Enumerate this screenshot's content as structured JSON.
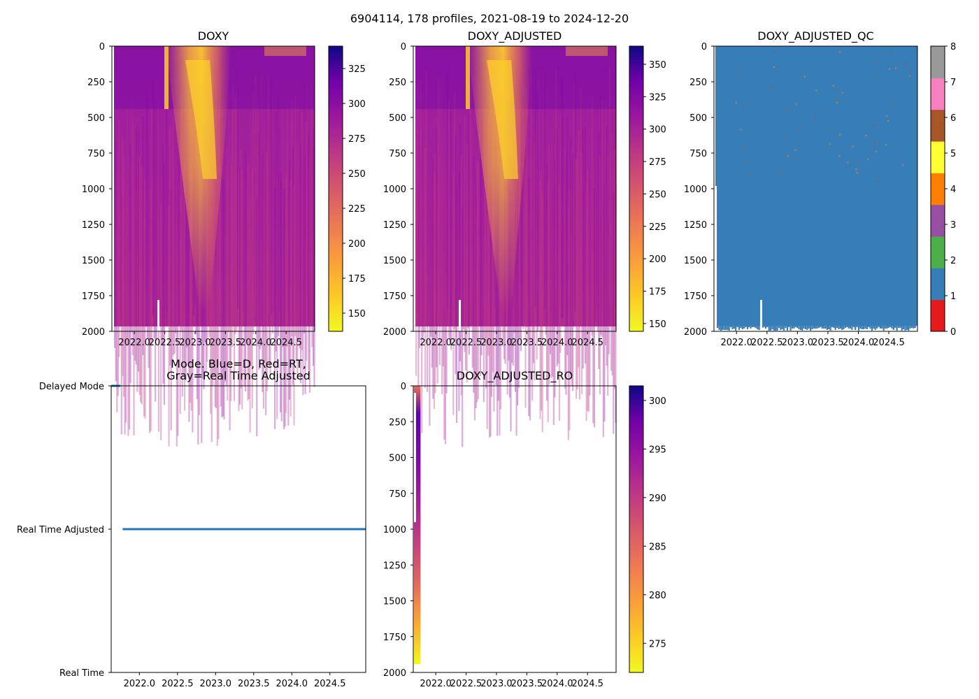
{
  "suptitle": "6904114, 178 profiles, 2021-08-19 to 2024-12-20",
  "chart_data": [
    {
      "id": "doxy",
      "type": "heatmap",
      "title": "DOXY",
      "colormap": "plasma_r",
      "x_ticks": [
        "2022.0",
        "2022.5",
        "2023.0",
        "2023.5",
        "2024.0",
        "2024.5"
      ],
      "x_tick_values": [
        2022.0,
        2022.5,
        2023.0,
        2023.5,
        2024.0,
        2024.5
      ],
      "xlim": [
        2021.63,
        2024.97
      ],
      "y_ticks": [
        "0",
        "250",
        "500",
        "750",
        "1000",
        "1250",
        "1500",
        "1750",
        "2000"
      ],
      "ylim": [
        2000,
        0
      ],
      "colorbar": {
        "min": 137,
        "max": 341,
        "ticks": [
          "150",
          "175",
          "200",
          "225",
          "250",
          "275",
          "300",
          "325"
        ],
        "tick_values": [
          150,
          175,
          200,
          225,
          250,
          275,
          300,
          325
        ]
      }
    },
    {
      "id": "doxy_adjusted",
      "type": "heatmap",
      "title": "DOXY_ADJUSTED",
      "colormap": "plasma_r",
      "x_ticks": [
        "2022.0",
        "2022.5",
        "2023.0",
        "2023.5",
        "2024.0",
        "2024.5"
      ],
      "x_tick_values": [
        2022.0,
        2022.5,
        2023.0,
        2023.5,
        2024.0,
        2024.5
      ],
      "xlim": [
        2021.63,
        2024.97
      ],
      "y_ticks": [
        "0",
        "250",
        "500",
        "750",
        "1000",
        "1250",
        "1500",
        "1750",
        "2000"
      ],
      "ylim": [
        2000,
        0
      ],
      "colorbar": {
        "min": 144,
        "max": 364,
        "ticks": [
          "150",
          "175",
          "200",
          "225",
          "250",
          "275",
          "300",
          "325",
          "350"
        ],
        "tick_values": [
          150,
          175,
          200,
          225,
          250,
          275,
          300,
          325,
          350
        ]
      }
    },
    {
      "id": "doxy_adjusted_qc",
      "type": "heatmap",
      "title": "DOXY_ADJUSTED_QC",
      "x_ticks": [
        "2022.0",
        "2022.5",
        "2023.0",
        "2023.5",
        "2024.0",
        "2024.5"
      ],
      "x_tick_values": [
        2022.0,
        2022.5,
        2023.0,
        2023.5,
        2024.0,
        2024.5
      ],
      "xlim": [
        2021.63,
        2024.97
      ],
      "y_ticks": [
        "0",
        "250",
        "500",
        "750",
        "1000",
        "1250",
        "1500",
        "1750",
        "2000"
      ],
      "ylim": [
        2000,
        0
      ],
      "dominant_flag": 1,
      "colorbar": {
        "min": 0,
        "max": 8,
        "ticks": [
          "0",
          "1",
          "2",
          "3",
          "4",
          "5",
          "6",
          "7",
          "8"
        ],
        "tick_values": [
          0,
          1,
          2,
          3,
          4,
          5,
          6,
          7,
          8
        ],
        "category_colors": [
          "#e41a1c",
          "#377eb8",
          "#4daf4a",
          "#984ea3",
          "#ff7f00",
          "#ffff33",
          "#a65628",
          "#f781bf",
          "#999999"
        ]
      }
    },
    {
      "id": "mode",
      "type": "line",
      "title_line1": "Mode. Blue=D, Red=RT,",
      "title_line2": "Gray=Real Time Adjusted",
      "x_ticks": [
        "2022.0",
        "2022.5",
        "2023.0",
        "2023.5",
        "2024.0",
        "2024.5"
      ],
      "x_tick_values": [
        2022.0,
        2022.5,
        2023.0,
        2023.5,
        2024.0,
        2024.5
      ],
      "xlim": [
        2021.63,
        2024.97
      ],
      "y_categories": [
        "Real Time",
        "Real Time Adjusted",
        "Delayed Mode"
      ],
      "series": [
        {
          "name": "Delayed Mode",
          "level": 2,
          "x": [
            2021.63,
            2021.75
          ],
          "color": "#1f77b4"
        },
        {
          "name": "Real Time Adjusted",
          "level": 1,
          "x": [
            2021.78,
            2024.97
          ],
          "color": "#1f77b4"
        }
      ]
    },
    {
      "id": "doxy_adjusted_ro",
      "type": "heatmap",
      "title": "DOXY_ADJUSTED_RO",
      "colormap": "plasma_r",
      "x_ticks": [
        "2022.0",
        "2022.5",
        "2023.0",
        "2023.5",
        "2024.0",
        "2024.5"
      ],
      "x_tick_values": [
        2022.0,
        2022.5,
        2023.0,
        2023.5,
        2024.0,
        2024.5
      ],
      "xlim": [
        2021.63,
        2024.97
      ],
      "y_ticks": [
        "0",
        "250",
        "500",
        "750",
        "1000",
        "1250",
        "1500",
        "1750",
        "2000"
      ],
      "ylim": [
        2000,
        0
      ],
      "data_xrange": [
        2021.64,
        2021.75
      ],
      "colorbar": {
        "min": 272,
        "max": 301.5,
        "ticks": [
          "275",
          "280",
          "285",
          "290",
          "295",
          "300"
        ],
        "tick_values": [
          275,
          280,
          285,
          290,
          295,
          300
        ]
      }
    }
  ]
}
